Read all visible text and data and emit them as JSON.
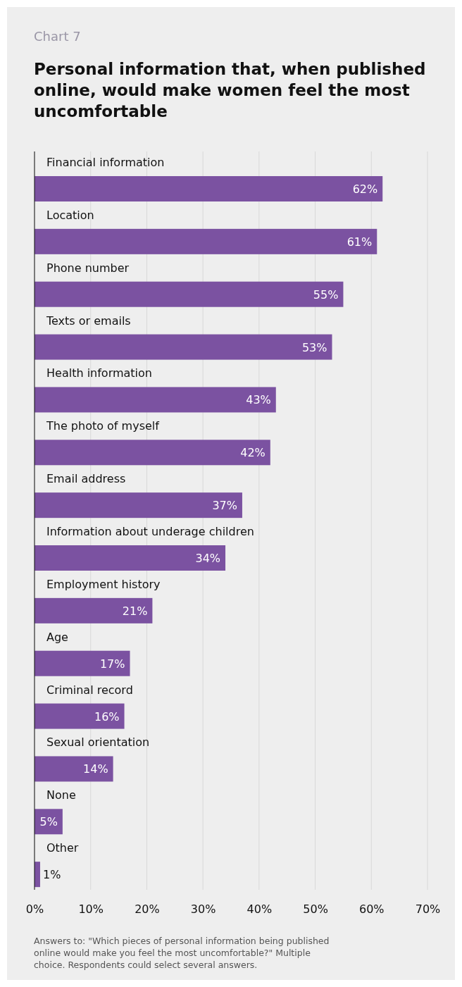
{
  "chart_data": {
    "type": "bar",
    "orientation": "horizontal",
    "subtitle": "Chart 7",
    "title": "Personal information that, when published online, would make women feel the most uncomfortable",
    "categories": [
      "Financial information",
      "Location",
      "Phone number",
      "Texts or emails",
      "Health information",
      "The photo of myself",
      "Email address",
      "Information about underage children",
      "Employment history",
      "Age",
      "Criminal record",
      "Sexual orientation",
      "None",
      "Other"
    ],
    "values": [
      62,
      61,
      55,
      53,
      43,
      42,
      37,
      34,
      21,
      17,
      16,
      14,
      5,
      1
    ],
    "value_labels": [
      "62%",
      "61%",
      "55%",
      "53%",
      "43%",
      "42%",
      "37%",
      "34%",
      "21%",
      "17%",
      "16%",
      "14%",
      "5%",
      "1%"
    ],
    "color": "#7b52a1",
    "xlim": [
      0,
      70
    ],
    "xticks": [
      {
        "value": 0,
        "label": "0%"
      },
      {
        "value": 10,
        "label": "10%"
      },
      {
        "value": 20,
        "label": "20%"
      },
      {
        "value": 30,
        "label": "30%"
      },
      {
        "value": 40,
        "label": "40%"
      },
      {
        "value": 50,
        "label": "50%"
      },
      {
        "value": 60,
        "label": "60%"
      },
      {
        "value": 70,
        "label": "70%"
      }
    ],
    "grid": "x",
    "annotations": [
      "Answers to: \"Which pieces of personal information being published online would make you feel the most uncomfortable?\" Multiple choice. Respondents could select several answers."
    ]
  }
}
